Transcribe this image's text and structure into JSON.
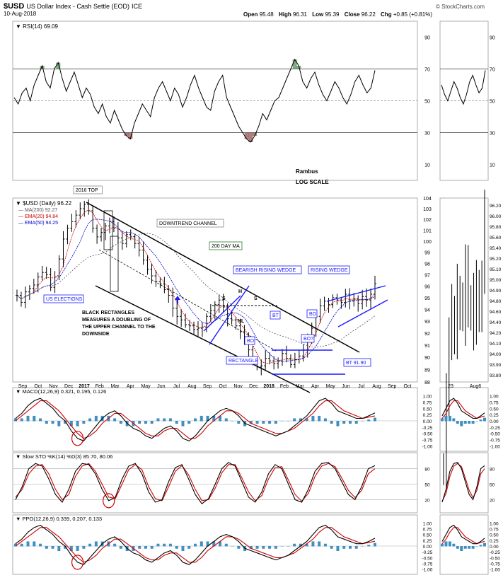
{
  "header": {
    "symbol": "$USD",
    "name": "US Dollar Index - Cash Settle (EOD)",
    "exchange": "ICE",
    "date": "10-Aug-2018",
    "open_label": "Open",
    "open": "95.48",
    "high_label": "High",
    "high": "96.31",
    "low_label": "Low",
    "low": "95.39",
    "close_label": "Close",
    "close": "96.22",
    "chg_label": "Chg",
    "chg": "+0.85 (+0.81%)",
    "watermark": "© StockCharts.com"
  },
  "annotations": {
    "rambus": "Rambus",
    "log_scale": "LOG SCALE",
    "top_2016": "2016 TOP",
    "downtrend_channel": "DOWNTREND CHANNEL",
    "day_ma_200": "200 DAY MA",
    "bearish_wedge": "BEARISH RISING WEDGE",
    "rising_wedge": "RISING WEDGE",
    "us_elections": "US ELECTIONS",
    "black_rect_1": "BLACK RECTANGLES",
    "black_rect_2": "MEASURES A DOUBLING OF",
    "black_rect_3": "THE UPPER CHANNEL TO THE",
    "black_rect_4": "DOWNSIDE",
    "rectangle": "RECTANGLE",
    "bo1": "BO",
    "bo2": "BO",
    "bo3": "BO?",
    "bt1": "BT",
    "bt2": "BT 91.90",
    "s1": "S",
    "h": "H",
    "s2": "S",
    "nl": "NL"
  },
  "colors": {
    "price_bar": "#000000",
    "ema20": "#cc0000",
    "ema50": "#0000cc",
    "ma200": "#555555",
    "blue_line": "#1a1aff",
    "annotation_border": "#1a1aff",
    "histogram": "#3f8fc2",
    "rsi_overbought": "#4a8a4a",
    "rsi_oversold": "#8a4a4a",
    "grid": "#c8c8c8"
  },
  "chart_data": [
    {
      "panel": "rsi",
      "type": "line",
      "title": "RSI(14) 69.09",
      "ylim": [
        0,
        100
      ],
      "y_ticks": [
        "90",
        "70",
        "50",
        "30",
        "10"
      ],
      "reference_lines": [
        70,
        50,
        30
      ],
      "last_value": 69.09,
      "series": [
        {
          "values": [
            52,
            48,
            55,
            58,
            50,
            60,
            66,
            72,
            62,
            58,
            70,
            74,
            64,
            56,
            62,
            68,
            60,
            52,
            58,
            54,
            46,
            42,
            48,
            40,
            36,
            44,
            38,
            32,
            28,
            26,
            36,
            42,
            48,
            44,
            40,
            52,
            58,
            62,
            56,
            50,
            58,
            54,
            46,
            52,
            60,
            66,
            58,
            52,
            46,
            44,
            56,
            62,
            66,
            52,
            46,
            40,
            34,
            30,
            26,
            24,
            28,
            34,
            42,
            38,
            44,
            50,
            52,
            58,
            64,
            70,
            76,
            72,
            62,
            58,
            64,
            68,
            60,
            54,
            50,
            56,
            62,
            58,
            52,
            48,
            54,
            62,
            66,
            60,
            55,
            58,
            69.09
          ]
        }
      ]
    },
    {
      "panel": "price",
      "type": "ohlc",
      "title": "$USD (Daily) 96.22",
      "scale": "log",
      "ylim": [
        88,
        104
      ],
      "y_ticks": [
        "104",
        "103",
        "102",
        "101",
        "100",
        "99",
        "98",
        "97",
        "96",
        "95",
        "94",
        "93",
        "92",
        "91",
        "90",
        "89",
        "88"
      ],
      "right_mini_ticks": [
        "96.20",
        "96.00",
        "95.80",
        "95.60",
        "95.40",
        "95.20",
        "95.10",
        "95.00",
        "94.90",
        "94.80",
        "94.60",
        "94.40",
        "94.20",
        "94.10",
        "94.00",
        "93.90",
        "93.80"
      ],
      "x_labels": [
        "Sep",
        "Oct",
        "Nov",
        "Dec",
        "2017",
        "Feb",
        "Mar",
        "Apr",
        "May",
        "Jun",
        "Jul",
        "Aug",
        "Sep",
        "Oct",
        "Nov",
        "Dec",
        "2018",
        "Feb",
        "Mar",
        "Apr",
        "May",
        "Jun",
        "Jul",
        "Aug",
        "Sep",
        "Oct"
      ],
      "mini_x_labels": [
        "23",
        "Aug6"
      ],
      "legend": [
        {
          "label": "MA(200) 92.27",
          "color": "#555555"
        },
        {
          "label": "EMA(20) 94.84",
          "color": "#cc0000"
        },
        {
          "label": "EMA(50) 94.25",
          "color": "#0000cc"
        }
      ],
      "close_values": [
        95.2,
        94.6,
        95.5,
        95.8,
        96.1,
        96.8,
        97.2,
        97.0,
        95.9,
        96.8,
        98.4,
        100.2,
        101.2,
        101.8,
        102.4,
        103.0,
        103.4,
        102.8,
        101.2,
        100.4,
        100.8,
        101.4,
        101.8,
        101.2,
        100.3,
        99.8,
        100.6,
        100.4,
        99.8,
        99.2,
        98.3,
        97.5,
        96.9,
        96.4,
        96.2,
        95.7,
        95.2,
        94.1,
        93.4,
        93.1,
        92.7,
        92.6,
        92.3,
        92.4,
        92.5,
        93.4,
        93.9,
        94.4,
        94.8,
        94.2,
        93.2,
        93.1,
        92.6,
        92.1,
        91.7,
        90.6,
        89.6,
        89.2,
        89.3,
        89.9,
        89.7,
        89.5,
        89.7,
        90.3,
        89.9,
        89.4,
        89.8,
        90.1,
        90.6,
        91.7,
        92.4,
        93.4,
        94.3,
        94.7,
        94.4,
        95.0,
        94.8,
        94.6,
        95.3,
        94.7,
        94.9,
        94.5,
        95.1,
        94.8,
        95.3,
        96.22
      ]
    },
    {
      "panel": "macd",
      "type": "line",
      "title": "MACD(12,26,9) 0.321, 0.195, 0.126",
      "y_ticks": [
        "1.00",
        "0.75",
        "0.50",
        "0.25",
        "0.00",
        "-0.25",
        "-0.50",
        "-0.75",
        "-1.00"
      ],
      "ylim": [
        -1.1,
        1.1
      ],
      "series": [
        {
          "name": "MACD(12,26,9)",
          "values": [
            0.1,
            0.3,
            0.6,
            0.8,
            0.9,
            0.7,
            0.5,
            0.2,
            0.0,
            -0.4,
            -0.7,
            -0.8,
            -0.5,
            -0.2,
            0.1,
            0.3,
            0.4,
            0.2,
            -0.1,
            -0.3,
            -0.4,
            -0.6,
            -0.7,
            -0.5,
            -0.3,
            -0.2,
            -0.4,
            -0.7,
            -0.8,
            -0.6,
            -0.3,
            0.0,
            0.2,
            0.4,
            0.5,
            0.4,
            0.2,
            -0.1,
            -0.2,
            -0.3,
            -0.4,
            -0.5,
            -0.6,
            -0.5,
            -0.4,
            -0.2,
            0.0,
            0.2,
            0.5,
            0.8,
            0.9,
            0.7,
            0.4,
            0.3,
            0.2,
            0.1,
            0.1,
            0.2,
            0.32
          ]
        },
        {
          "name": "Signal",
          "values": [
            0.0,
            0.2,
            0.4,
            0.6,
            0.8,
            0.8,
            0.6,
            0.4,
            0.1,
            -0.2,
            -0.5,
            -0.7,
            -0.6,
            -0.4,
            -0.1,
            0.1,
            0.3,
            0.3,
            0.1,
            -0.1,
            -0.3,
            -0.5,
            -0.6,
            -0.6,
            -0.4,
            -0.3,
            -0.3,
            -0.5,
            -0.7,
            -0.7,
            -0.5,
            -0.2,
            0.0,
            0.2,
            0.4,
            0.4,
            0.3,
            0.1,
            -0.1,
            -0.2,
            -0.3,
            -0.4,
            -0.5,
            -0.5,
            -0.4,
            -0.3,
            -0.1,
            0.1,
            0.3,
            0.6,
            0.8,
            0.8,
            0.6,
            0.4,
            0.3,
            0.2,
            0.1,
            0.15,
            0.195
          ]
        }
      ]
    },
    {
      "panel": "stochastic",
      "type": "line",
      "title": "Slow STO %K(14) %D(3) 85.70, 80.06",
      "y_ticks": [
        "80",
        "50",
        "20"
      ],
      "ylim": [
        0,
        100
      ],
      "series": [
        {
          "name": "%K(14)",
          "values": [
            20,
            45,
            80,
            90,
            85,
            60,
            30,
            15,
            40,
            75,
            90,
            88,
            70,
            40,
            18,
            25,
            60,
            85,
            90,
            70,
            35,
            15,
            20,
            55,
            82,
            88,
            60,
            30,
            12,
            22,
            50,
            80,
            92,
            85,
            55,
            25,
            15,
            35,
            70,
            88,
            80,
            50,
            20,
            15,
            40,
            75,
            90,
            92,
            80,
            55,
            30,
            20,
            45,
            80,
            85.7
          ]
        },
        {
          "name": "%D(3)",
          "values": [
            25,
            40,
            70,
            85,
            88,
            70,
            40,
            20,
            30,
            65,
            85,
            90,
            75,
            50,
            25,
            22,
            50,
            78,
            88,
            78,
            45,
            22,
            18,
            45,
            75,
            86,
            68,
            40,
            18,
            20,
            42,
            72,
            88,
            88,
            62,
            35,
            18,
            28,
            60,
            82,
            84,
            58,
            30,
            17,
            32,
            65,
            85,
            90,
            84,
            62,
            38,
            24,
            38,
            70,
            80.06
          ]
        }
      ]
    },
    {
      "panel": "ppo",
      "type": "line",
      "title": "PPO(12,26,9) 0.339, 0.207, 0.133",
      "y_ticks": [
        "1.00",
        "0.75",
        "0.50",
        "0.25",
        "0.00",
        "-0.25",
        "-0.50",
        "-0.75",
        "-1.00"
      ],
      "ylim": [
        -1.1,
        1.1
      ],
      "series": [
        {
          "name": "PPO(12,26,9)",
          "values": [
            0.1,
            0.3,
            0.6,
            0.8,
            0.9,
            0.7,
            0.5,
            0.2,
            0.0,
            -0.4,
            -0.7,
            -0.8,
            -0.5,
            -0.2,
            0.1,
            0.3,
            0.4,
            0.2,
            -0.1,
            -0.3,
            -0.4,
            -0.6,
            -0.7,
            -0.5,
            -0.3,
            -0.2,
            -0.4,
            -0.7,
            -0.8,
            -0.6,
            -0.3,
            0.0,
            0.2,
            0.4,
            0.5,
            0.4,
            0.2,
            -0.1,
            -0.2,
            -0.3,
            -0.4,
            -0.5,
            -0.6,
            -0.5,
            -0.4,
            -0.2,
            0.0,
            0.2,
            0.5,
            0.8,
            0.9,
            0.7,
            0.4,
            0.3,
            0.2,
            0.1,
            0.1,
            0.2,
            0.339
          ]
        },
        {
          "name": "Signal",
          "values": [
            0.0,
            0.2,
            0.4,
            0.6,
            0.8,
            0.8,
            0.6,
            0.4,
            0.1,
            -0.2,
            -0.5,
            -0.7,
            -0.6,
            -0.4,
            -0.1,
            0.1,
            0.3,
            0.3,
            0.1,
            -0.1,
            -0.3,
            -0.5,
            -0.6,
            -0.6,
            -0.4,
            -0.3,
            -0.3,
            -0.5,
            -0.7,
            -0.7,
            -0.5,
            -0.2,
            0.0,
            0.2,
            0.4,
            0.4,
            0.3,
            0.1,
            -0.1,
            -0.2,
            -0.3,
            -0.4,
            -0.5,
            -0.5,
            -0.4,
            -0.3,
            -0.1,
            0.1,
            0.3,
            0.6,
            0.8,
            0.8,
            0.6,
            0.4,
            0.3,
            0.2,
            0.1,
            0.15,
            0.207
          ]
        }
      ]
    }
  ]
}
